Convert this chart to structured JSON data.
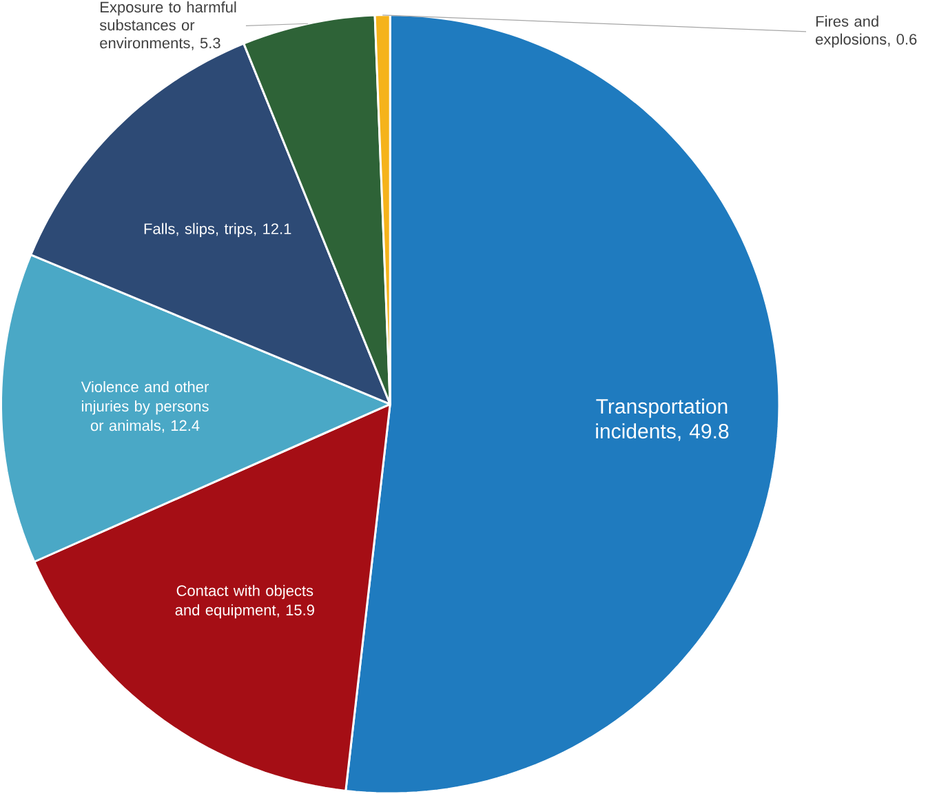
{
  "chart_data": {
    "type": "pie",
    "categories": [
      "Transportation incidents",
      "Contact with objects and equipment",
      "Violence and other injuries by persons or animals",
      "Falls, slips, trips",
      "Exposure to harmful substances or environments",
      "Fires and explosions"
    ],
    "values": [
      49.8,
      15.9,
      12.4,
      12.1,
      5.3,
      0.6
    ],
    "colors": [
      "#1f7bbf",
      "#a50e15",
      "#4aa8c6",
      "#2d4a75",
      "#2e6337",
      "#f5b31b"
    ],
    "value_labels": [
      ", 49.8",
      ", 15.9",
      ", 12.4",
      ", 12.1",
      ", 5.3",
      ", 0.6"
    ]
  }
}
